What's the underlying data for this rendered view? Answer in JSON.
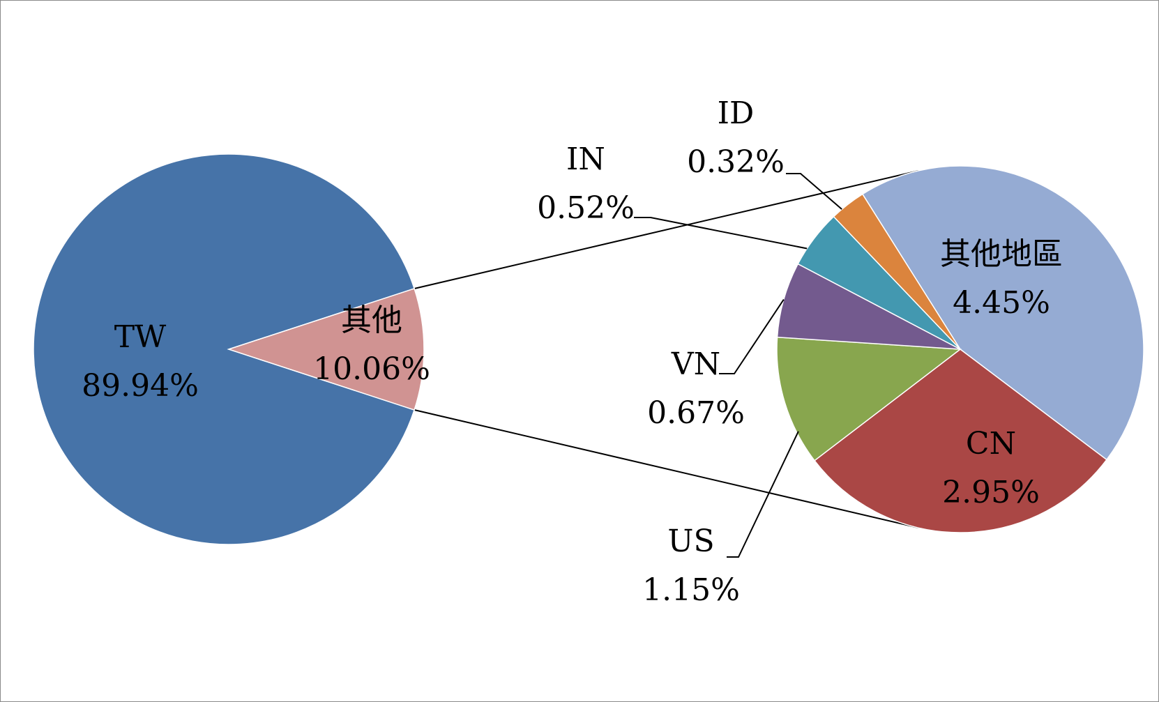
{
  "chart_data": {
    "type": "pie",
    "subtype": "pie-of-pie",
    "title": "",
    "main_pie": {
      "slices": [
        {
          "name": "TW",
          "value": 89.94,
          "label": "89.94%",
          "color": "#4673A8"
        },
        {
          "name": "其他",
          "value": 10.06,
          "label": "10.06%",
          "color": "#D09392"
        }
      ]
    },
    "secondary_pie": {
      "parent": "其他",
      "slices": [
        {
          "name": "其他地區",
          "value": 4.45,
          "label": "4.45%",
          "color": "#95ABD3"
        },
        {
          "name": "CN",
          "value": 2.95,
          "label": "2.95%",
          "color": "#AA4745"
        },
        {
          "name": "US",
          "value": 1.15,
          "label": "1.15%",
          "color": "#88A64E"
        },
        {
          "name": "VN",
          "value": 0.67,
          "label": "0.67%",
          "color": "#735A8E"
        },
        {
          "name": "IN",
          "value": 0.52,
          "label": "0.52%",
          "color": "#4398B0"
        },
        {
          "name": "ID",
          "value": 0.32,
          "label": "0.32%",
          "color": "#DB843D"
        }
      ]
    },
    "legend": "none",
    "data_labels": "category-and-percent"
  }
}
